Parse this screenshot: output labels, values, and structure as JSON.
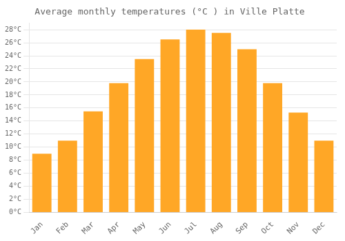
{
  "chart_data": {
    "type": "bar",
    "title": "Average monthly temperatures (°C ) in Ville Platte",
    "categories": [
      "Jan",
      "Feb",
      "Mar",
      "Apr",
      "May",
      "Jun",
      "Jul",
      "Aug",
      "Sep",
      "Oct",
      "Nov",
      "Dec"
    ],
    "values": [
      9.0,
      11.0,
      15.5,
      19.8,
      23.5,
      26.5,
      28.0,
      27.5,
      25.0,
      19.8,
      15.3,
      11.0
    ],
    "color": "#FFA726",
    "ylim": [
      0,
      29
    ],
    "yticks": [
      {
        "value": 0,
        "label": "0°C"
      },
      {
        "value": 2,
        "label": "2°C"
      },
      {
        "value": 4,
        "label": "4°C"
      },
      {
        "value": 6,
        "label": "6°C"
      },
      {
        "value": 8,
        "label": "8°C"
      },
      {
        "value": 10,
        "label": "10°C"
      },
      {
        "value": 12,
        "label": "12°C"
      },
      {
        "value": 14,
        "label": "14°C"
      },
      {
        "value": 16,
        "label": "16°C"
      },
      {
        "value": 18,
        "label": "18°C"
      },
      {
        "value": 20,
        "label": "20°C"
      },
      {
        "value": 22,
        "label": "22°C"
      },
      {
        "value": 24,
        "label": "24°C"
      },
      {
        "value": 26,
        "label": "26°C"
      },
      {
        "value": 28,
        "label": "28°C"
      }
    ],
    "grid": true
  }
}
